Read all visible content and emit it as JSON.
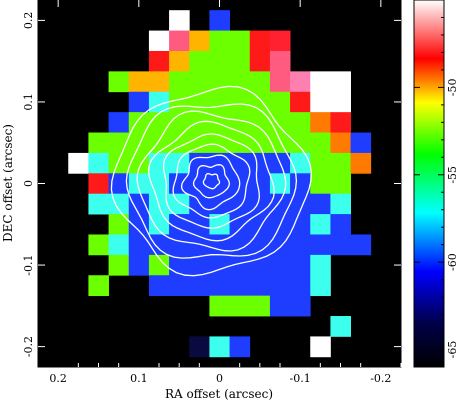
{
  "chart_data": {
    "type": "heatmap",
    "xlabel": "RA offset (arcsec)",
    "ylabel": "DEC offset (arcsec)",
    "xlim": [
      0.225,
      -0.225
    ],
    "ylim": [
      -0.225,
      0.225
    ],
    "x_ticks": [
      0.2,
      0.1,
      0,
      -0.1,
      -0.2
    ],
    "x_tick_labels": [
      "0.2",
      "0.1",
      "0",
      "-0.1",
      "-0.2"
    ],
    "y_ticks": [
      0.2,
      0.1,
      0,
      -0.1,
      -0.2
    ],
    "y_tick_labels": [
      "0.2",
      "0.1",
      "0",
      "-0.1",
      "-0.2"
    ],
    "colorbar": {
      "range": [
        -66,
        -45
      ],
      "ticks": [
        -50,
        -55,
        -60,
        -65
      ],
      "tick_labels": [
        "-50",
        "-55",
        "-60",
        "-65"
      ],
      "colormap": [
        "#000000",
        "#0000ff",
        "#00ffff",
        "#00ff00",
        "#ffff00",
        "#ff0000",
        "#ffffff"
      ]
    },
    "background_color": "#000000",
    "contour_color": "#ffffff",
    "contour_levels": 9,
    "contour_center": [
      0.01,
      0.003
    ],
    "grid": {
      "x_centers": [
        0.2,
        0.175,
        0.15,
        0.125,
        0.1,
        0.075,
        0.05,
        0.025,
        0,
        -0.025,
        -0.05,
        -0.075,
        -0.1,
        -0.125,
        -0.15,
        -0.175,
        -0.2
      ],
      "y_centers": [
        0.2,
        0.175,
        0.15,
        0.125,
        0.1,
        0.075,
        0.05,
        0.025,
        0,
        -0.025,
        -0.05,
        -0.075,
        -0.1,
        -0.125,
        -0.15,
        -0.175,
        -0.2
      ],
      "rows": [
        "______W_B________",
        "_____WMYGGRr_____",
        "_____RYGGGRM_____",
        "___GYYGGGGGMPWW__",
        "____BCGGGGGGRWW__",
        "___BGGGGGGGGGOR__",
        "__GGGGGGGGGGGGOB_",
        "_WCGGCCBBBBBCGGO_",
        "__RBCCBBBBBCBGG__",
        "__CCBCCBBBBBBBC__",
        "___GBCBBCBBBBCB__",
        "__GCBBBBBBBBBBBB_",
        "___GBGBBBBBBBC___",
        "__G__BBBBBBBBC___",
        "________GGGBB____",
        "______________C__",
        "_______NCB___W___"
      ],
      "legend": {
        "_": "#000000",
        "W": "#ffffff",
        "B": "#1f3dff",
        "C": "#3dffee",
        "G": "#6cff00",
        "Y": "#ffb400",
        "O": "#ff7a00",
        "R": "#ff1a1a",
        "r": "#ff2030",
        "M": "#ff5a80",
        "P": "#ff80b0",
        "N": "#0a0a40"
      }
    }
  }
}
